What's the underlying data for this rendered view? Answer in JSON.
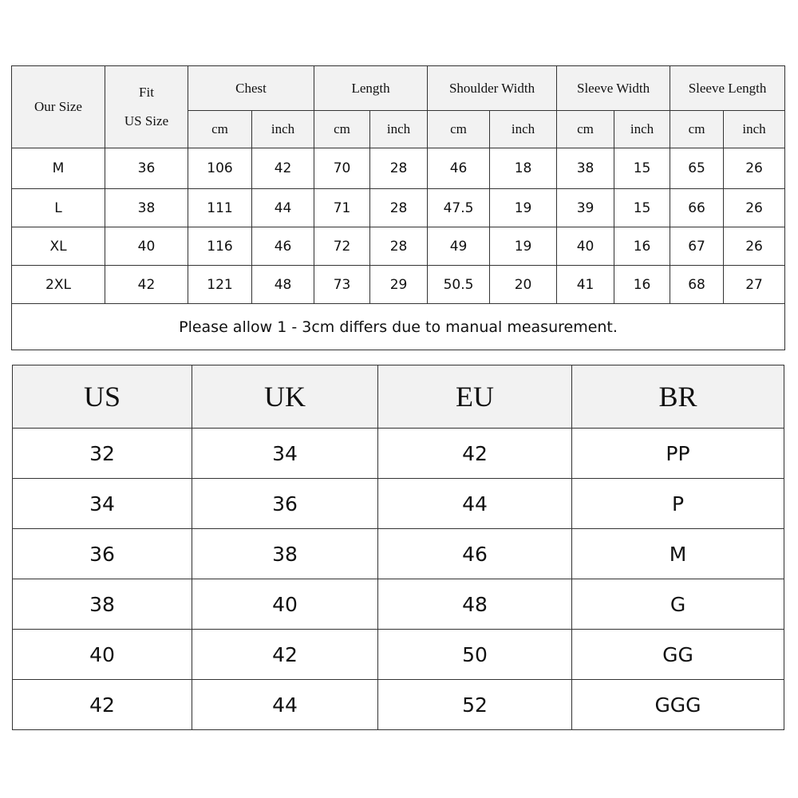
{
  "size_chart": {
    "headers": {
      "our_size": "Our Size",
      "fit_line1": "Fit",
      "fit_line2": "US Size",
      "groups": [
        "Chest",
        "Length",
        "Shoulder Width",
        "Sleeve Width",
        "Sleeve Length"
      ],
      "unit_cm": "cm",
      "unit_inch": "inch"
    },
    "rows": [
      [
        "M",
        "36",
        "106",
        "42",
        "70",
        "28",
        "46",
        "18",
        "38",
        "15",
        "65",
        "26"
      ],
      [
        "L",
        "38",
        "111",
        "44",
        "71",
        "28",
        "47.5",
        "19",
        "39",
        "15",
        "66",
        "26"
      ],
      [
        "XL",
        "40",
        "116",
        "46",
        "72",
        "28",
        "49",
        "19",
        "40",
        "16",
        "67",
        "26"
      ],
      [
        "2XL",
        "42",
        "121",
        "48",
        "73",
        "29",
        "50.5",
        "20",
        "41",
        "16",
        "68",
        "27"
      ]
    ],
    "note": "Please allow 1 - 3cm differs due to manual measurement."
  },
  "conversion_chart": {
    "headers": [
      "US",
      "UK",
      "EU",
      "BR"
    ],
    "rows": [
      [
        "32",
        "34",
        "42",
        "PP"
      ],
      [
        "34",
        "36",
        "44",
        "P"
      ],
      [
        "36",
        "38",
        "46",
        "M"
      ],
      [
        "38",
        "40",
        "48",
        "G"
      ],
      [
        "40",
        "42",
        "50",
        "GG"
      ],
      [
        "42",
        "44",
        "52",
        "GGG"
      ]
    ]
  }
}
